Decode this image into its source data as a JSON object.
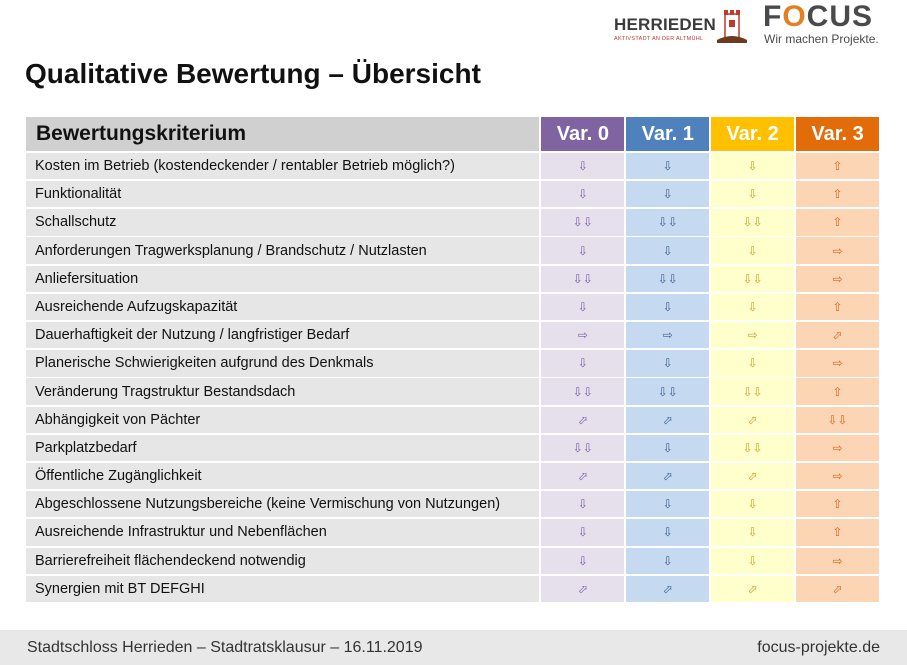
{
  "logos": {
    "herrieden_word": "HERRIEDEN",
    "herrieden_tag": "AKTIVSTADT AN DER ALTMÜHL",
    "focus_word_f": "F",
    "focus_word_o": "O",
    "focus_word_rest": "CUS",
    "focus_tag": "Wir machen Projekte."
  },
  "title": "Qualitative Bewertung – Übersicht",
  "table": {
    "header_criterion": "Bewertungskriterium",
    "variants": [
      "Var. 0",
      "Var. 1",
      "Var. 2",
      "Var. 3"
    ],
    "rows": [
      {
        "label": "Kosten im Betrieb (kostendeckender / rentabler Betrieb möglich?)",
        "v": [
          "⇩",
          "⇩",
          "⇩",
          "⇧"
        ]
      },
      {
        "label": "Funktionalität",
        "v": [
          "⇩",
          "⇩",
          "⇩",
          "⇧"
        ]
      },
      {
        "label": "Schallschutz",
        "v": [
          "⇩⇩",
          "⇩⇩",
          "⇩⇩",
          "⇧"
        ]
      },
      {
        "label": "Anforderungen Tragwerksplanung / Brandschutz / Nutzlasten",
        "v": [
          "⇩",
          "⇩",
          "⇩",
          "⇨"
        ]
      },
      {
        "label": "Anliefersituation",
        "v": [
          "⇩⇩",
          "⇩⇩",
          "⇩⇩",
          "⇨"
        ]
      },
      {
        "label": "Ausreichende Aufzugskapazität",
        "v": [
          "⇩",
          "⇩",
          "⇩",
          "⇧"
        ]
      },
      {
        "label": "Dauerhaftigkeit der Nutzung / langfristiger Bedarf",
        "v": [
          "⇨",
          "⇨",
          "⇨",
          "⬀"
        ]
      },
      {
        "label": "Planerische Schwierigkeiten aufgrund des Denkmals",
        "v": [
          "⇩",
          "⇩",
          "⇩",
          "⇨"
        ]
      },
      {
        "label": "Veränderung Tragstruktur Bestandsdach",
        "v": [
          "⇩⇩",
          "⇩⇩",
          "⇩⇩",
          "⇧"
        ]
      },
      {
        "label": "Abhängigkeit von Pächter",
        "v": [
          "⬀",
          "⬀",
          "⬀",
          "⇩⇩"
        ]
      },
      {
        "label": "Parkplatzbedarf",
        "v": [
          "⇩⇩",
          "⇩",
          "⇩⇩",
          "⇨"
        ]
      },
      {
        "label": "Öffentliche Zugänglichkeit",
        "v": [
          "⬀",
          "⬀",
          "⬀",
          "⇨"
        ]
      },
      {
        "label": "Abgeschlossene Nutzungsbereiche (keine Vermischung von Nutzungen)",
        "v": [
          "⇩",
          "⇩",
          "⇩",
          "⇧"
        ]
      },
      {
        "label": "Ausreichende Infrastruktur und Nebenflächen",
        "v": [
          "⇩",
          "⇩",
          "⇩",
          "⇧"
        ]
      },
      {
        "label": "Barrierefreiheit flächendeckend notwendig",
        "v": [
          "⇩",
          "⇩",
          "⇩",
          "⇨"
        ]
      },
      {
        "label": "Synergien mit BT DEFGHI",
        "v": [
          "⬀",
          "⬀",
          "⬀",
          "⬀"
        ]
      }
    ]
  },
  "footer": {
    "left": "Stadtschloss Herrieden – Stadtratsklausur – 16.11.2019",
    "right": "focus-projekte.de"
  },
  "colors": {
    "var0": "#8064a2",
    "var1": "#4f81bd",
    "var2": "#ffc000",
    "var3": "#e36c0a"
  }
}
